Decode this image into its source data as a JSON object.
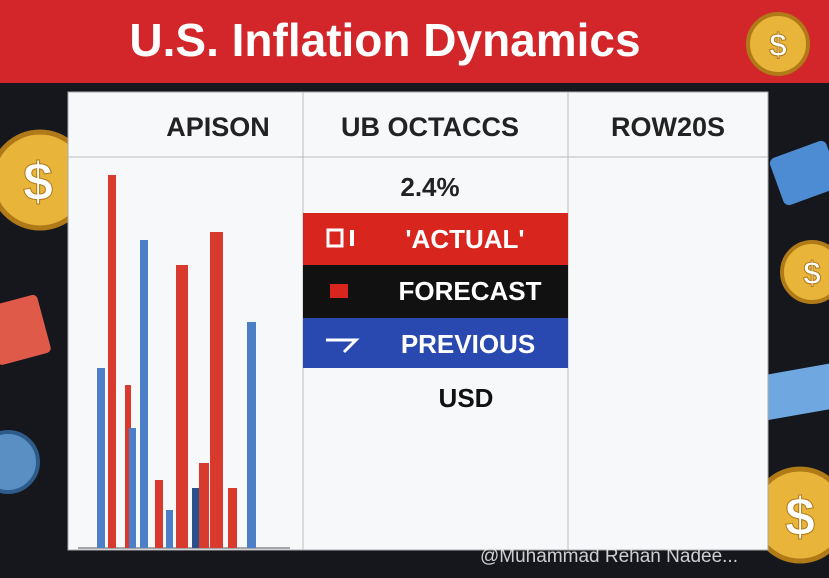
{
  "header": {
    "title": "U.S. Inflation Dynamics"
  },
  "table": {
    "columns": [
      "APISON",
      "UB OCTACCS",
      "ROW20S"
    ],
    "middle": {
      "value": "2.4%",
      "rows": [
        "'ACTUAL'",
        "FORECAST",
        "PREVIOUS"
      ],
      "footer": "USD"
    }
  },
  "watermark": "@Muhammad Rehan Nadee..."
}
